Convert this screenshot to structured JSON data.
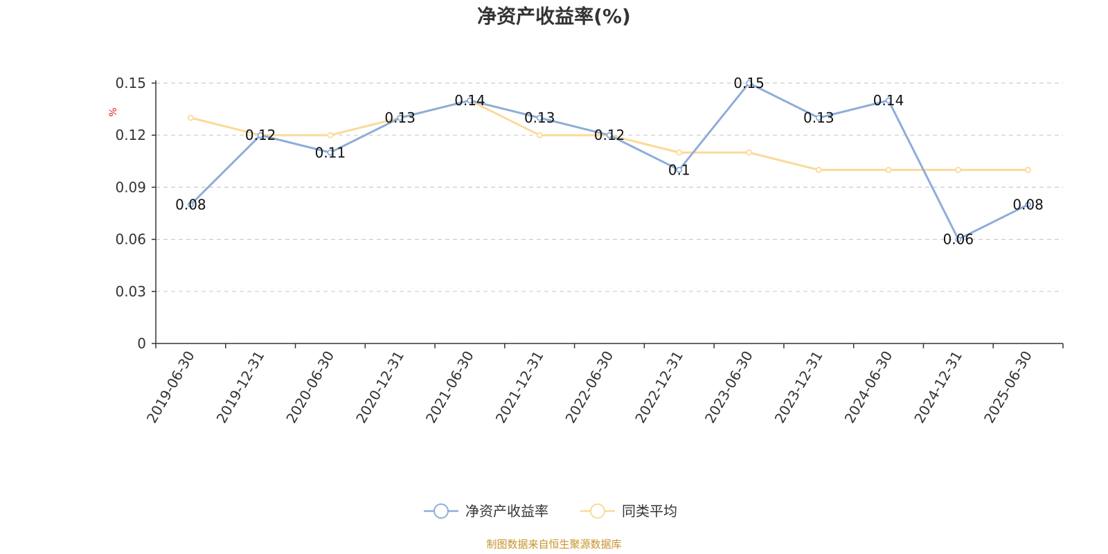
{
  "chart_data": {
    "type": "line",
    "title": "净资产收益率(%)",
    "ylabel": "%",
    "xlabel": "",
    "categories": [
      "2019-06-30",
      "2019-12-31",
      "2020-06-30",
      "2020-12-31",
      "2021-06-30",
      "2021-12-31",
      "2022-06-30",
      "2022-12-31",
      "2023-06-30",
      "2023-12-31",
      "2024-06-30",
      "2024-12-31",
      "2025-06-30"
    ],
    "ylim": [
      0,
      0.15
    ],
    "yticks": [
      "0",
      "0.03",
      "0.06",
      "0.09",
      "0.12",
      "0.15"
    ],
    "grid": true,
    "legend_position": "bottom-center",
    "series": [
      {
        "name": "净资产收益率",
        "color": "#8eadd8",
        "values": [
          0.08,
          0.12,
          0.11,
          0.13,
          0.14,
          0.13,
          0.12,
          0.1,
          0.15,
          0.13,
          0.14,
          0.06,
          0.08
        ],
        "labels": [
          "0.08",
          "0.12",
          "0.11",
          "0.13",
          "0.14",
          "0.13",
          "0.12",
          "0.1",
          "0.15",
          "0.13",
          "0.14",
          "0.06",
          "0.08"
        ]
      },
      {
        "name": "同类平均",
        "color": "#fbd99a",
        "values": [
          0.13,
          0.12,
          0.12,
          0.13,
          0.14,
          0.12,
          0.12,
          0.11,
          0.11,
          0.1,
          0.1,
          0.1,
          0.1
        ]
      }
    ]
  },
  "source": "制图数据来自恒生聚源数据库",
  "colors": {
    "source_text": "#c8932a",
    "unit_text": "#e02020",
    "grid": "#cccccc",
    "axis": "#333333"
  }
}
